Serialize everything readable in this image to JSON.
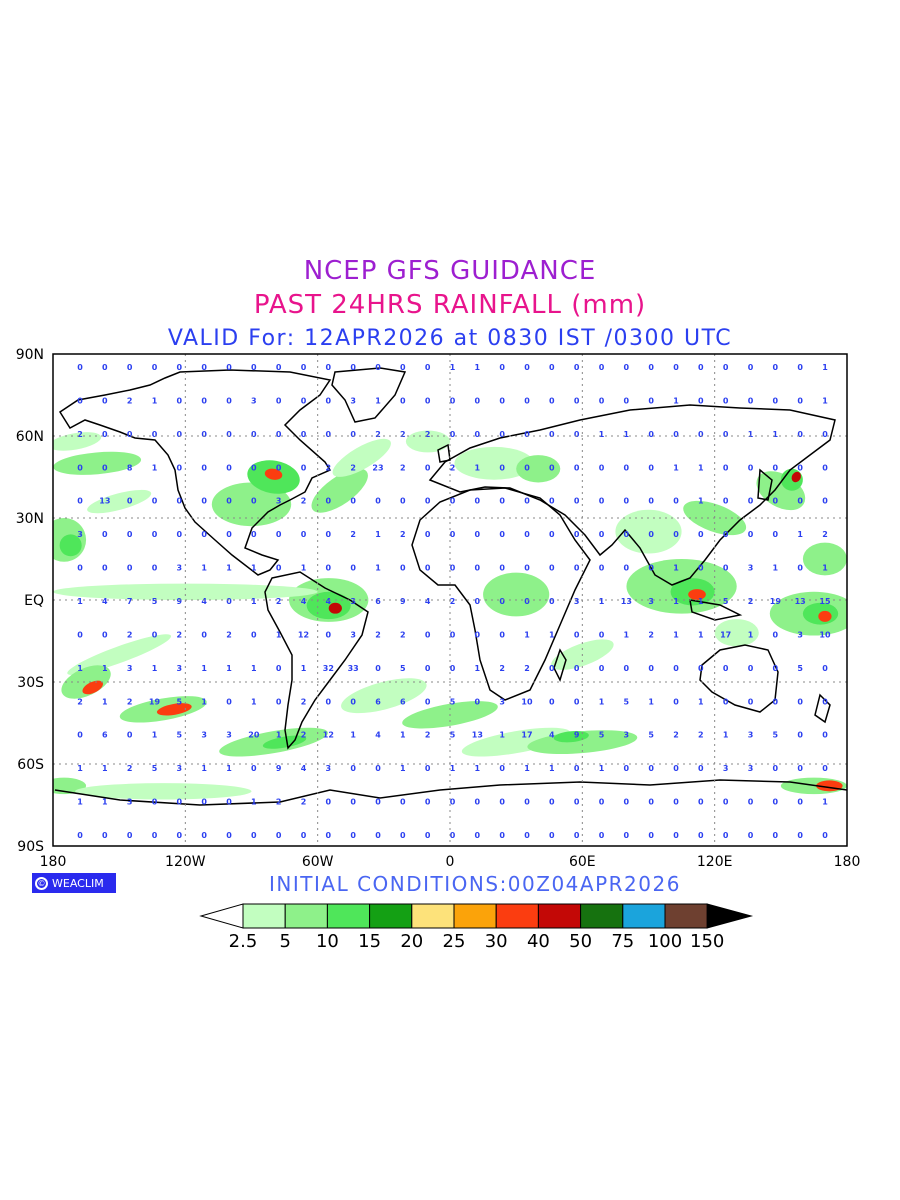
{
  "header": {
    "title": "NCEP GFS GUIDANCE",
    "subtitle": "PAST 24HRS RAINFALL (mm)",
    "valid": "VALID For: 12APR2026 at 0830 IST /0300 UTC",
    "title_color": "#9d1fd0",
    "subtitle_color": "#e8148c",
    "valid_color": "#2b3ff0"
  },
  "axes": {
    "lat_labels": [
      "90N",
      "60N",
      "30N",
      "EQ",
      "30S",
      "60S",
      "90S"
    ],
    "lon_labels": [
      "180",
      "120W",
      "60W",
      "0",
      "60E",
      "120E",
      "180"
    ]
  },
  "logo": {
    "text": "WEACLIM",
    "icon": "copyright-circle-icon"
  },
  "footer": {
    "initial_conditions": "INITIAL CONDITIONS:00Z04APR2026",
    "color": "#4a66f2"
  },
  "colorbar": {
    "labels": [
      "2.5",
      "5",
      "10",
      "15",
      "20",
      "25",
      "30",
      "40",
      "50",
      "75",
      "100",
      "150"
    ],
    "colors": [
      "#c2fec0",
      "#8ef18a",
      "#4fe65a",
      "#14a014",
      "#fde27a",
      "#fba30a",
      "#fb3d10",
      "#c30806",
      "#16720f",
      "#1ba4dc",
      "#6e4030"
    ],
    "under_color": "#ffffff",
    "over_color": "#000000"
  },
  "rain_colors": {
    "light": "#c2fec0",
    "moderate": "#8ef18a",
    "heavy": "#4fe65a",
    "intense": "#fb3d10",
    "extreme": "#c30806",
    "values_color": "#2b3ff0"
  },
  "grid_values": [
    [
      "0",
      "0",
      "0",
      "0",
      "0",
      "0",
      "0",
      "0",
      "0",
      "0",
      "0",
      "0",
      "0",
      "0",
      "0",
      "1",
      "1",
      "0",
      "0",
      "0",
      "0",
      "0",
      "0",
      "0",
      "0",
      "0",
      "0",
      "0",
      "0",
      "0",
      "1"
    ],
    [
      "0",
      "0",
      "2",
      "1",
      "0",
      "0",
      "0",
      "3",
      "0",
      "0",
      "0",
      "3",
      "1",
      "0",
      "0",
      "0",
      "0",
      "0",
      "0",
      "0",
      "0",
      "0",
      "0",
      "0",
      "1",
      "0",
      "0",
      "0",
      "0",
      "0",
      "1"
    ],
    [
      "2",
      "0",
      "0",
      "0",
      "0",
      "0",
      "0",
      "0",
      "0",
      "0",
      "0",
      "0",
      "2",
      "2",
      "2",
      "0",
      "0",
      "0",
      "0",
      "0",
      "0",
      "1",
      "1",
      "0",
      "0",
      "0",
      "0",
      "1",
      "1",
      "0",
      "0"
    ],
    [
      "0",
      "0",
      "8",
      "1",
      "0",
      "0",
      "0",
      "0",
      "0",
      "0",
      "2",
      "2",
      "23",
      "2",
      "0",
      "2",
      "1",
      "0",
      "0",
      "0",
      "0",
      "0",
      "0",
      "0",
      "1",
      "1",
      "0",
      "0",
      "0",
      "0",
      "0"
    ],
    [
      "0",
      "13",
      "0",
      "0",
      "0",
      "0",
      "0",
      "0",
      "3",
      "2",
      "0",
      "0",
      "0",
      "0",
      "0",
      "0",
      "0",
      "0",
      "0",
      "0",
      "0",
      "0",
      "0",
      "0",
      "0",
      "1",
      "0",
      "0",
      "0",
      "0",
      "0"
    ],
    [
      "3",
      "0",
      "0",
      "0",
      "0",
      "0",
      "0",
      "0",
      "0",
      "0",
      "0",
      "2",
      "1",
      "2",
      "0",
      "0",
      "0",
      "0",
      "0",
      "0",
      "0",
      "0",
      "0",
      "0",
      "0",
      "0",
      "0",
      "0",
      "0",
      "1",
      "2"
    ],
    [
      "0",
      "0",
      "0",
      "0",
      "3",
      "1",
      "1",
      "1",
      "0",
      "1",
      "0",
      "0",
      "1",
      "0",
      "0",
      "0",
      "0",
      "0",
      "0",
      "0",
      "0",
      "0",
      "0",
      "0",
      "1",
      "0",
      "0",
      "3",
      "1",
      "0",
      "1"
    ],
    [
      "1",
      "4",
      "7",
      "5",
      "9",
      "4",
      "0",
      "1",
      "2",
      "4",
      "4",
      "3",
      "6",
      "9",
      "4",
      "2",
      "0",
      "0",
      "0",
      "0",
      "3",
      "1",
      "13",
      "3",
      "1",
      "1",
      "5",
      "2",
      "19",
      "13",
      "15"
    ],
    [
      "0",
      "0",
      "2",
      "0",
      "2",
      "0",
      "2",
      "0",
      "1",
      "12",
      "0",
      "3",
      "2",
      "2",
      "0",
      "0",
      "0",
      "0",
      "1",
      "1",
      "0",
      "0",
      "1",
      "2",
      "1",
      "1",
      "17",
      "1",
      "0",
      "3",
      "10"
    ],
    [
      "1",
      "1",
      "3",
      "1",
      "3",
      "1",
      "1",
      "1",
      "0",
      "1",
      "32",
      "33",
      "0",
      "5",
      "0",
      "0",
      "1",
      "2",
      "2",
      "0",
      "0",
      "0",
      "0",
      "0",
      "0",
      "0",
      "0",
      "0",
      "0",
      "5",
      "0"
    ],
    [
      "2",
      "1",
      "2",
      "19",
      "5",
      "1",
      "0",
      "1",
      "0",
      "2",
      "0",
      "0",
      "6",
      "6",
      "0",
      "5",
      "0",
      "3",
      "10",
      "0",
      "0",
      "1",
      "5",
      "1",
      "0",
      "1",
      "0",
      "0",
      "0",
      "0",
      "0"
    ],
    [
      "0",
      "6",
      "0",
      "1",
      "5",
      "3",
      "3",
      "20",
      "1",
      "2",
      "12",
      "1",
      "4",
      "1",
      "2",
      "5",
      "13",
      "1",
      "17",
      "4",
      "9",
      "5",
      "3",
      "5",
      "2",
      "2",
      "1",
      "3",
      "5",
      "0",
      "0"
    ],
    [
      "1",
      "1",
      "2",
      "5",
      "3",
      "1",
      "1",
      "0",
      "9",
      "4",
      "3",
      "0",
      "0",
      "1",
      "0",
      "1",
      "1",
      "0",
      "1",
      "1",
      "0",
      "1",
      "0",
      "0",
      "0",
      "0",
      "3",
      "3",
      "0",
      "0",
      "0"
    ],
    [
      "1",
      "1",
      "3",
      "0",
      "0",
      "0",
      "0",
      "1",
      "2",
      "2",
      "0",
      "0",
      "0",
      "0",
      "0",
      "0",
      "0",
      "0",
      "0",
      "0",
      "0",
      "0",
      "0",
      "0",
      "0",
      "0",
      "0",
      "0",
      "0",
      "0",
      "1"
    ],
    [
      "0",
      "0",
      "0",
      "0",
      "0",
      "0",
      "0",
      "0",
      "0",
      "0",
      "0",
      "0",
      "0",
      "0",
      "0",
      "0",
      "0",
      "0",
      "0",
      "0",
      "0",
      "0",
      "0",
      "0",
      "0",
      "0",
      "0",
      "0",
      "0",
      "0",
      "0"
    ]
  ]
}
